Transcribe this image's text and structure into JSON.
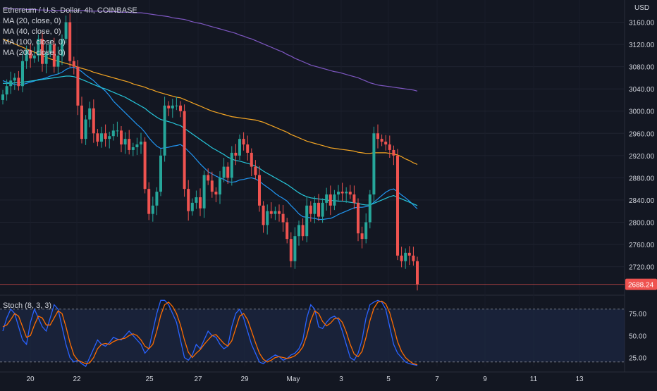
{
  "header": {
    "symbol_title": "Ethereum / U.S. Dollar, 4h, COINBASE",
    "indicators": [
      "MA (20, close, 0)",
      "MA (40, close, 0)",
      "MA (100, close, 0)",
      "MA (200, close, 0)"
    ],
    "currency": "USD"
  },
  "stoch_label": "Stoch (8, 3, 3)",
  "colors": {
    "background": "#131722",
    "up": "#26a69a",
    "down": "#ef5350",
    "ma20": "#2196f3",
    "ma40": "#26c6da",
    "ma100": "#f5a623",
    "ma200": "#7e57c2",
    "stoch_k": "#2962ff",
    "stoch_d": "#ff6d00",
    "stoch_band": "#1e2a4a"
  },
  "chart_data": [
    {
      "type": "candlestick",
      "title": "Ethereum / U.S. Dollar, 4h, COINBASE",
      "timeframe": "4h",
      "y_unit": "USD",
      "ylim": [
        2670,
        3200
      ],
      "y_ticks": [
        3160,
        3120,
        3080,
        3040,
        3000,
        2960,
        2920,
        2880,
        2840,
        2800,
        2760,
        2720
      ],
      "y_tick_labels": [
        "3160.00",
        "3120.00",
        "3080.00",
        "3040.00",
        "3000.00",
        "2960.00",
        "2920.00",
        "2880.00",
        "2840.00",
        "2800.00",
        "2760.00",
        "2720.00"
      ],
      "last_price_label": "2688.24",
      "x_tick_labels": [
        "20",
        "22",
        "25",
        "27",
        "29",
        "May",
        "3",
        "5",
        "7",
        "9",
        "11",
        "13"
      ],
      "close": [
        3030,
        3045,
        3055,
        3060,
        3045,
        3090,
        3110,
        3095,
        3100,
        3130,
        3085,
        3105,
        3120,
        3080,
        3100,
        3130,
        3160,
        3090,
        3080,
        3010,
        2950,
        2985,
        3005,
        2960,
        2945,
        2960,
        2950,
        2955,
        2965,
        2965,
        2940,
        2950,
        2930,
        2935,
        2940,
        2945,
        2860,
        2815,
        2830,
        2855,
        2920,
        3010,
        3005,
        3010,
        3010,
        3000,
        2860,
        2820,
        2835,
        2845,
        2825,
        2885,
        2875,
        2855,
        2850,
        2880,
        2900,
        2880,
        2925,
        2920,
        2950,
        2940,
        2925,
        2900,
        2885,
        2830,
        2795,
        2820,
        2815,
        2820,
        2815,
        2800,
        2770,
        2730,
        2775,
        2795,
        2775,
        2830,
        2815,
        2835,
        2810,
        2835,
        2850,
        2830,
        2850,
        2855,
        2852,
        2855,
        2850,
        2835,
        2780,
        2770,
        2800,
        2850,
        2960,
        2950,
        2945,
        2940,
        2930,
        2920,
        2740,
        2730,
        2745,
        2740,
        2730,
        2688.24
      ],
      "series": [
        {
          "name": "MA (20, close, 0)",
          "values": [
            3055,
            3052,
            3050,
            3048,
            3047,
            3048,
            3050,
            3052,
            3054,
            3057,
            3058,
            3060,
            3063,
            3065,
            3067,
            3070,
            3075,
            3078,
            3079,
            3076,
            3071,
            3065,
            3060,
            3055,
            3048,
            3042,
            3036,
            3028,
            3018,
            3011,
            3004,
            2997,
            2990,
            2983,
            2976,
            2970,
            2962,
            2952,
            2944,
            2937,
            2933,
            2934,
            2935,
            2937,
            2938,
            2940,
            2935,
            2928,
            2921,
            2913,
            2905,
            2898,
            2891,
            2887,
            2883,
            2880,
            2877,
            2873,
            2872,
            2873,
            2876,
            2877,
            2879,
            2880,
            2878,
            2874,
            2868,
            2863,
            2858,
            2852,
            2847,
            2843,
            2838,
            2830,
            2823,
            2815,
            2810,
            2809,
            2808,
            2807,
            2805,
            2805,
            2806,
            2807,
            2810,
            2814,
            2817,
            2820,
            2823,
            2826,
            2827,
            2827,
            2828,
            2830,
            2836,
            2842,
            2848,
            2854,
            2858,
            2860,
            2855,
            2849,
            2844,
            2838,
            2831,
            2824
          ]
        },
        {
          "name": "MA (40, close, 0)",
          "values": [
            3050,
            3050,
            3050,
            3051,
            3051,
            3052,
            3053,
            3054,
            3055,
            3056,
            3057,
            3058,
            3059,
            3060,
            3061,
            3062,
            3063,
            3063,
            3062,
            3060,
            3057,
            3054,
            3051,
            3048,
            3045,
            3042,
            3040,
            3037,
            3034,
            3031,
            3028,
            3025,
            3021,
            3017,
            3013,
            3009,
            3005,
            2999,
            2994,
            2989,
            2985,
            2983,
            2981,
            2979,
            2976,
            2974,
            2969,
            2964,
            2959,
            2954,
            2949,
            2944,
            2939,
            2934,
            2930,
            2926,
            2922,
            2917,
            2914,
            2911,
            2910,
            2908,
            2906,
            2904,
            2901,
            2897,
            2892,
            2888,
            2884,
            2880,
            2876,
            2872,
            2868,
            2863,
            2858,
            2853,
            2849,
            2846,
            2844,
            2843,
            2842,
            2841,
            2840,
            2839,
            2839,
            2838,
            2838,
            2837,
            2836,
            2835,
            2834,
            2832,
            2831,
            2831,
            2834,
            2837,
            2840,
            2843,
            2846,
            2848,
            2845,
            2842,
            2839,
            2836,
            2833,
            2830
          ]
        },
        {
          "name": "MA (100, close, 0)",
          "values": [
            3130,
            3127,
            3124,
            3121,
            3118,
            3115,
            3112,
            3109,
            3106,
            3103,
            3100,
            3097,
            3094,
            3092,
            3090,
            3088,
            3086,
            3084,
            3082,
            3079,
            3077,
            3075,
            3073,
            3070,
            3068,
            3066,
            3064,
            3062,
            3060,
            3058,
            3056,
            3054,
            3052,
            3049,
            3047,
            3045,
            3043,
            3040,
            3038,
            3035,
            3033,
            3031,
            3029,
            3027,
            3025,
            3024,
            3021,
            3018,
            3015,
            3012,
            3009,
            3006,
            3003,
            3000,
            2998,
            2996,
            2994,
            2992,
            2990,
            2989,
            2988,
            2987,
            2986,
            2985,
            2984,
            2982,
            2980,
            2977,
            2974,
            2971,
            2968,
            2965,
            2962,
            2958,
            2955,
            2952,
            2949,
            2946,
            2944,
            2942,
            2940,
            2938,
            2936,
            2934,
            2933,
            2932,
            2931,
            2930,
            2929,
            2928,
            2926,
            2925,
            2924,
            2924,
            2925,
            2925,
            2925,
            2925,
            2924,
            2923,
            2921,
            2918,
            2914,
            2911,
            2907,
            2904
          ]
        },
        {
          "name": "MA (200, close, 0)",
          "values": [
            3185,
            3185,
            3184,
            3184,
            3184,
            3184,
            3183,
            3183,
            3183,
            3182,
            3182,
            3182,
            3181,
            3181,
            3181,
            3181,
            3181,
            3181,
            3181,
            3181,
            3181,
            3181,
            3180,
            3180,
            3180,
            3180,
            3180,
            3179,
            3179,
            3179,
            3178,
            3178,
            3178,
            3177,
            3177,
            3177,
            3176,
            3175,
            3174,
            3173,
            3172,
            3171,
            3170,
            3168,
            3167,
            3166,
            3165,
            3163,
            3161,
            3159,
            3158,
            3156,
            3154,
            3152,
            3150,
            3148,
            3146,
            3144,
            3142,
            3140,
            3137,
            3135,
            3132,
            3130,
            3127,
            3124,
            3121,
            3118,
            3115,
            3112,
            3109,
            3106,
            3102,
            3099,
            3095,
            3092,
            3089,
            3086,
            3083,
            3081,
            3079,
            3077,
            3075,
            3073,
            3071,
            3070,
            3068,
            3066,
            3064,
            3062,
            3060,
            3057,
            3054,
            3051,
            3049,
            3047,
            3046,
            3045,
            3044,
            3043,
            3042,
            3041,
            3040,
            3039,
            3038,
            3036
          ]
        }
      ]
    },
    {
      "type": "line",
      "title": "Stoch (8, 3, 3)",
      "ylim": [
        15,
        95
      ],
      "y_ticks": [
        75,
        50,
        25
      ],
      "y_tick_labels": [
        "75.00",
        "50.00",
        "25.00"
      ],
      "band": [
        20,
        80
      ],
      "series": [
        {
          "name": "%K",
          "values": [
            55,
            70,
            80,
            75,
            60,
            45,
            40,
            65,
            80,
            70,
            60,
            55,
            70,
            85,
            80,
            60,
            40,
            25,
            20,
            22,
            18,
            15,
            25,
            35,
            45,
            40,
            38,
            42,
            48,
            46,
            45,
            50,
            55,
            50,
            45,
            40,
            30,
            35,
            55,
            75,
            90,
            90,
            85,
            75,
            65,
            45,
            25,
            22,
            28,
            40,
            35,
            45,
            55,
            50,
            48,
            40,
            35,
            38,
            60,
            75,
            80,
            70,
            55,
            40,
            30,
            20,
            18,
            22,
            25,
            28,
            26,
            22,
            24,
            28,
            30,
            35,
            45,
            70,
            85,
            80,
            60,
            58,
            65,
            70,
            72,
            68,
            55,
            40,
            25,
            22,
            30,
            45,
            70,
            85,
            88,
            90,
            88,
            80,
            60,
            40,
            30,
            25,
            20,
            18,
            17,
            16
          ]
        },
        {
          "name": "%D",
          "values": [
            60,
            62,
            68,
            75,
            72,
            60,
            48,
            50,
            62,
            72,
            70,
            62,
            62,
            70,
            78,
            75,
            60,
            42,
            28,
            22,
            20,
            18,
            19,
            25,
            35,
            40,
            41,
            40,
            43,
            45,
            46,
            47,
            50,
            52,
            50,
            45,
            38,
            35,
            40,
            55,
            73,
            85,
            88,
            83,
            75,
            62,
            45,
            31,
            25,
            30,
            34,
            40,
            45,
            50,
            51,
            46,
            41,
            38,
            44,
            58,
            72,
            75,
            68,
            55,
            42,
            30,
            23,
            20,
            22,
            25,
            26,
            25,
            24,
            25,
            27,
            31,
            37,
            50,
            67,
            78,
            75,
            66,
            61,
            64,
            69,
            70,
            65,
            54,
            40,
            29,
            26,
            32,
            48,
            67,
            81,
            88,
            89,
            86,
            76,
            60,
            43,
            32,
            25,
            21,
            18,
            17
          ]
        }
      ]
    }
  ]
}
